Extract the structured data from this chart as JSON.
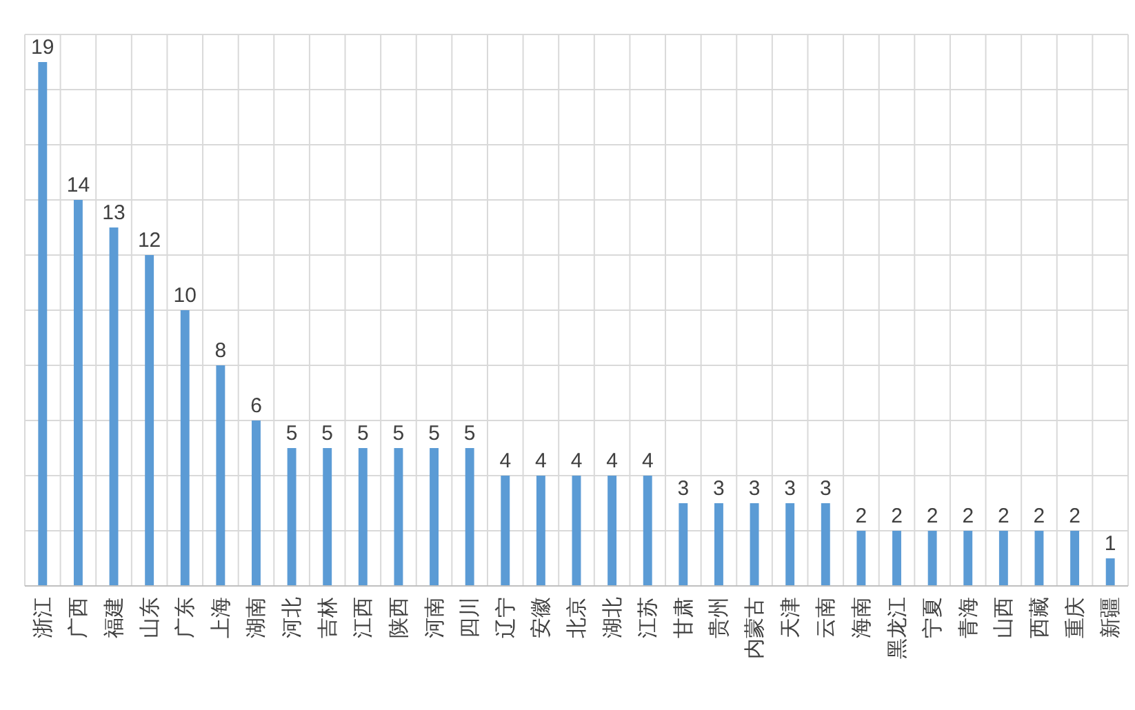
{
  "chart_data": {
    "type": "bar",
    "categories": [
      "浙江",
      "广西",
      "福建",
      "山东",
      "广东",
      "上海",
      "湖南",
      "河北",
      "吉林",
      "江西",
      "陕西",
      "河南",
      "四川",
      "辽宁",
      "安徽",
      "北京",
      "湖北",
      "江苏",
      "甘肃",
      "贵州",
      "内蒙古",
      "天津",
      "云南",
      "海南",
      "黑龙江",
      "宁夏",
      "青海",
      "山西",
      "西藏",
      "重庆",
      "新疆"
    ],
    "values": [
      19,
      14,
      13,
      12,
      10,
      8,
      6,
      5,
      5,
      5,
      5,
      5,
      5,
      4,
      4,
      4,
      4,
      4,
      3,
      3,
      3,
      3,
      3,
      2,
      2,
      2,
      2,
      2,
      2,
      2,
      1
    ],
    "color": "#5b9bd5",
    "data_labels": true,
    "grid": true,
    "tick_labels": "x",
    "ylim": [
      0,
      20
    ],
    "yticks": [
      {
        "value": 0,
        "label": null
      },
      {
        "value": 2,
        "label": null
      },
      {
        "value": 4,
        "label": null
      },
      {
        "value": 6,
        "label": null
      },
      {
        "value": 8,
        "label": null
      },
      {
        "value": 10,
        "label": null
      },
      {
        "value": 12,
        "label": null
      },
      {
        "value": 14,
        "label": null
      },
      {
        "value": 16,
        "label": null
      },
      {
        "value": 18,
        "label": null
      },
      {
        "value": 20,
        "label": null
      }
    ]
  }
}
